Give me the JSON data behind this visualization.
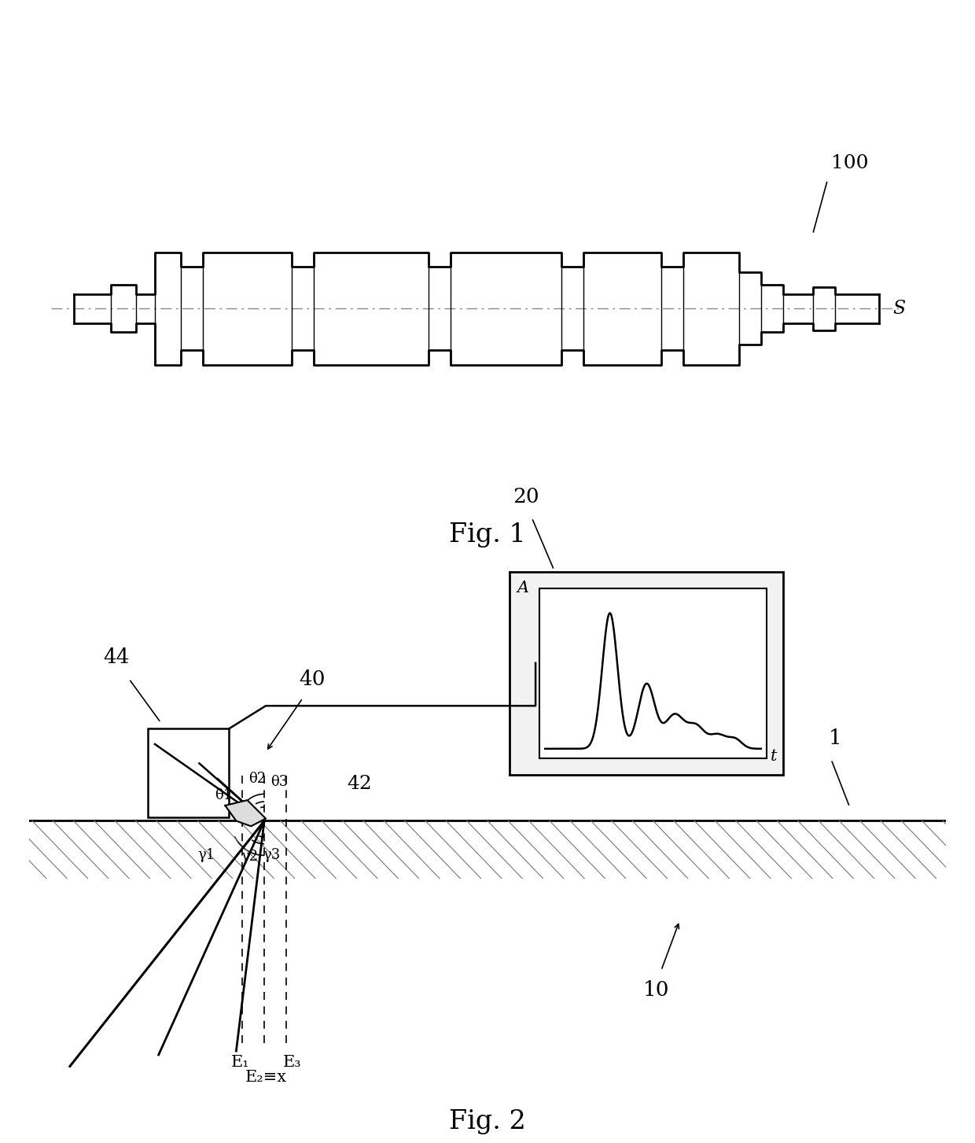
{
  "bg_color": "#ffffff",
  "fig_width": 12.4,
  "fig_height": 14.53,
  "line_color": "#000000",
  "fig1_label": "Fig. 1",
  "fig2_label": "Fig. 2",
  "label_100": "100",
  "label_S": "S",
  "label_20": "20",
  "label_40": "40",
  "label_42": "42",
  "label_44": "44",
  "label_1": "1",
  "label_10": "10",
  "label_A": "A",
  "label_t": "t",
  "label_theta1": "θ1",
  "label_theta2": "θ2",
  "label_theta3": "θ3",
  "label_gamma1": "γ1",
  "label_gamma2": "γ2",
  "label_gamma3": "γ3",
  "label_E1": "E₁",
  "label_E2": "E₂≡x",
  "label_E3": "E₃"
}
